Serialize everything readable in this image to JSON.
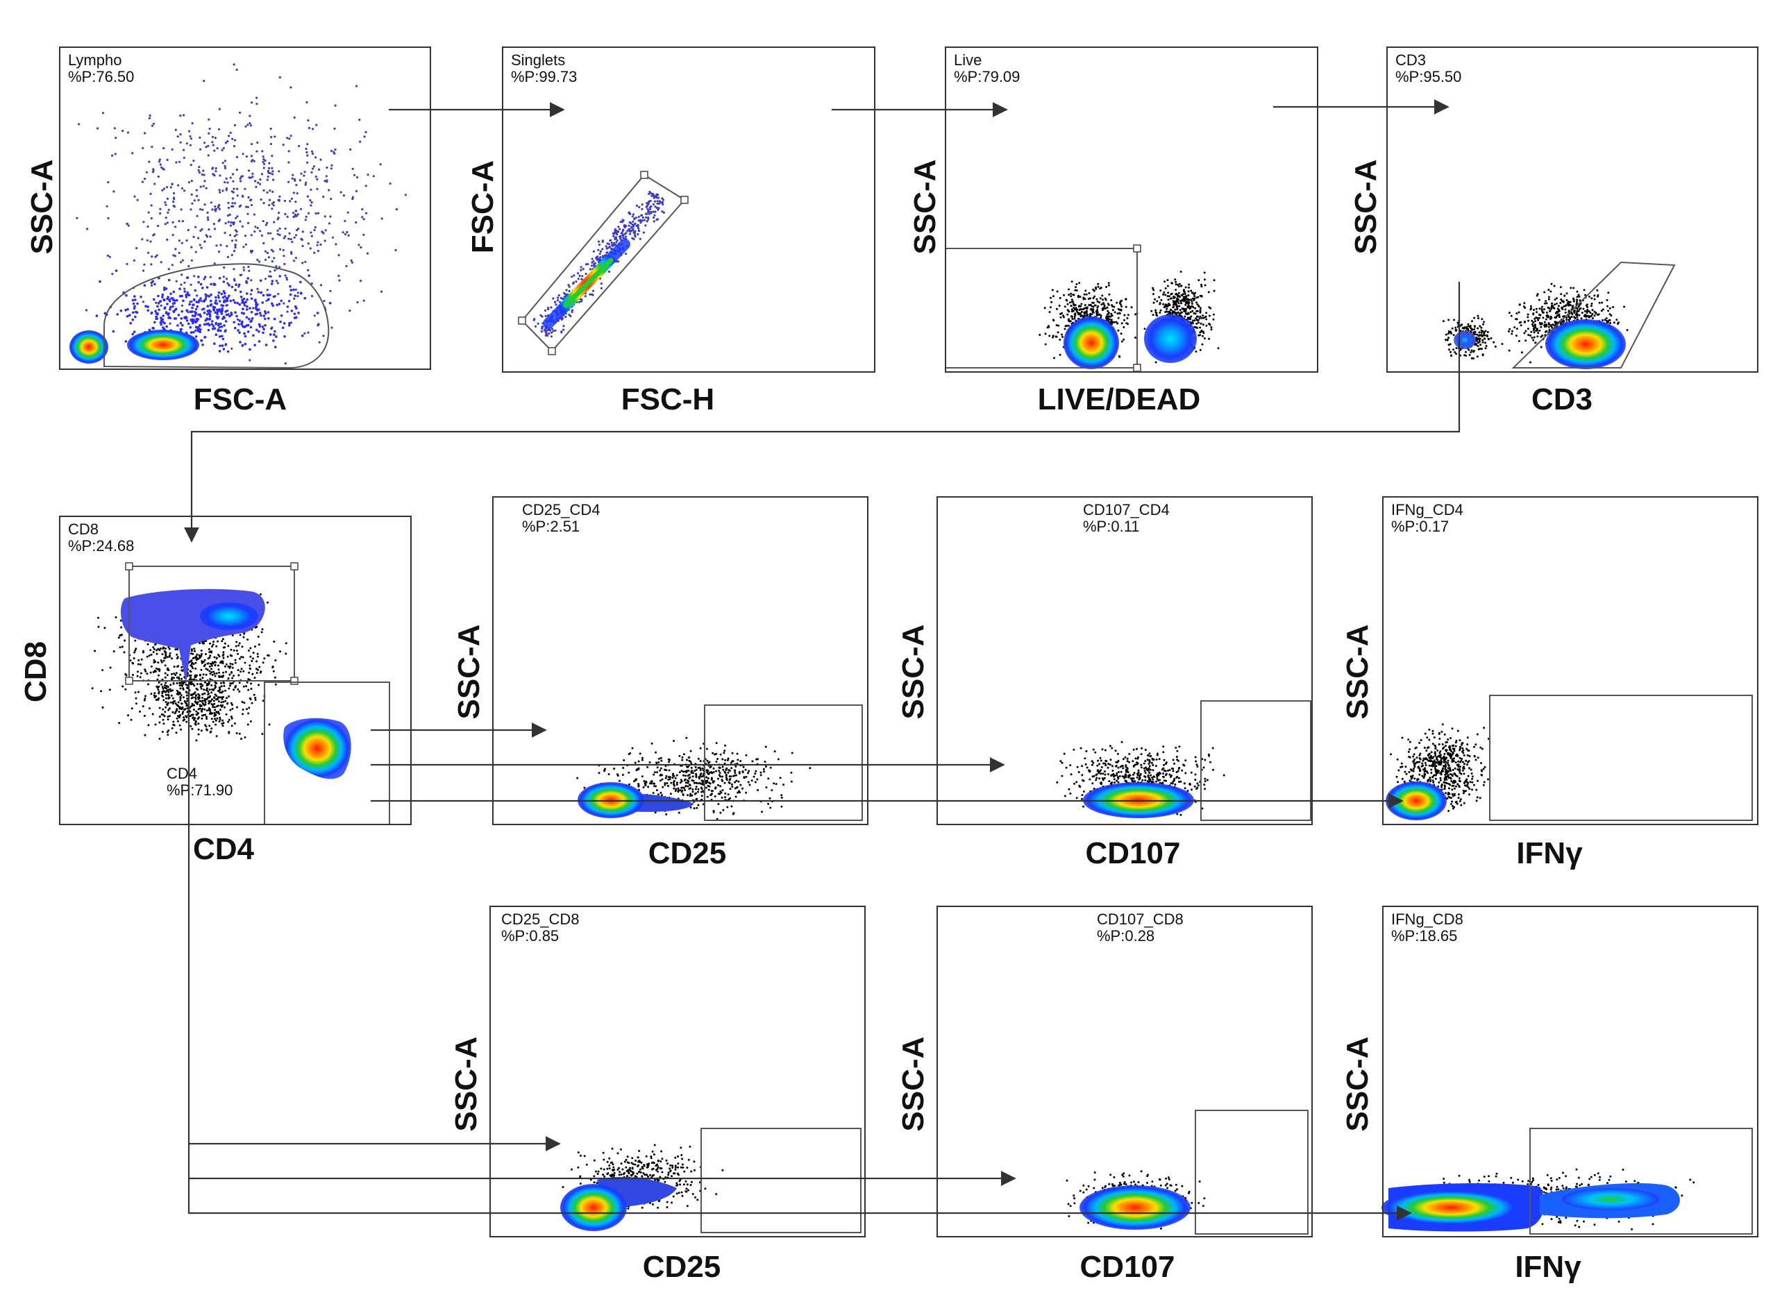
{
  "colors": {
    "low": "#1a3cff",
    "mid": "#00b4ff",
    "high": "#22cc33",
    "peak": "#ffdd00",
    "top": "#ff1a00",
    "dots": "#000000",
    "dots_sparse": "#3a3acc"
  },
  "panels": [
    {
      "id": "lympho",
      "gate_name": "Lympho",
      "percent": "%P:76.50",
      "x_label": "FSC-A",
      "y_label": "SSC-A"
    },
    {
      "id": "singlets",
      "gate_name": "Singlets",
      "percent": "%P:99.73",
      "x_label": "FSC-H",
      "y_label": "FSC-A"
    },
    {
      "id": "live",
      "gate_name": "Live",
      "percent": "%P:79.09",
      "x_label": "LIVE/DEAD",
      "y_label": "SSC-A"
    },
    {
      "id": "cd3",
      "gate_name": "CD3",
      "percent": "%P:95.50",
      "x_label": "CD3",
      "y_label": "SSC-A"
    },
    {
      "id": "cd8cd4",
      "gate_name": "CD8",
      "percent": "%P:24.68",
      "gate2_name": "CD4",
      "percent2": "%P:71.90",
      "x_label": "CD4",
      "y_label": "CD8"
    },
    {
      "id": "cd25_cd4",
      "gate_name": "CD25_CD4",
      "percent": "%P:2.51",
      "x_label": "CD25",
      "y_label": "SSC-A"
    },
    {
      "id": "cd107_cd4",
      "gate_name": "CD107_CD4",
      "percent": "%P:0.11",
      "x_label": "CD107",
      "y_label": "SSC-A"
    },
    {
      "id": "ifng_cd4",
      "gate_name": "IFNg_CD4",
      "percent": "%P:0.17",
      "x_label": "IFNγ",
      "y_label": "SSC-A"
    },
    {
      "id": "cd25_cd8",
      "gate_name": "CD25_CD8",
      "percent": "%P:0.85",
      "x_label": "CD25",
      "y_label": "SSC-A"
    },
    {
      "id": "cd107_cd8",
      "gate_name": "CD107_CD8",
      "percent": "%P:0.28",
      "x_label": "CD107",
      "y_label": "SSC-A"
    },
    {
      "id": "ifng_cd8",
      "gate_name": "IFNg_CD8",
      "percent": "%P:18.65",
      "x_label": "IFNγ",
      "y_label": "SSC-A"
    }
  ]
}
